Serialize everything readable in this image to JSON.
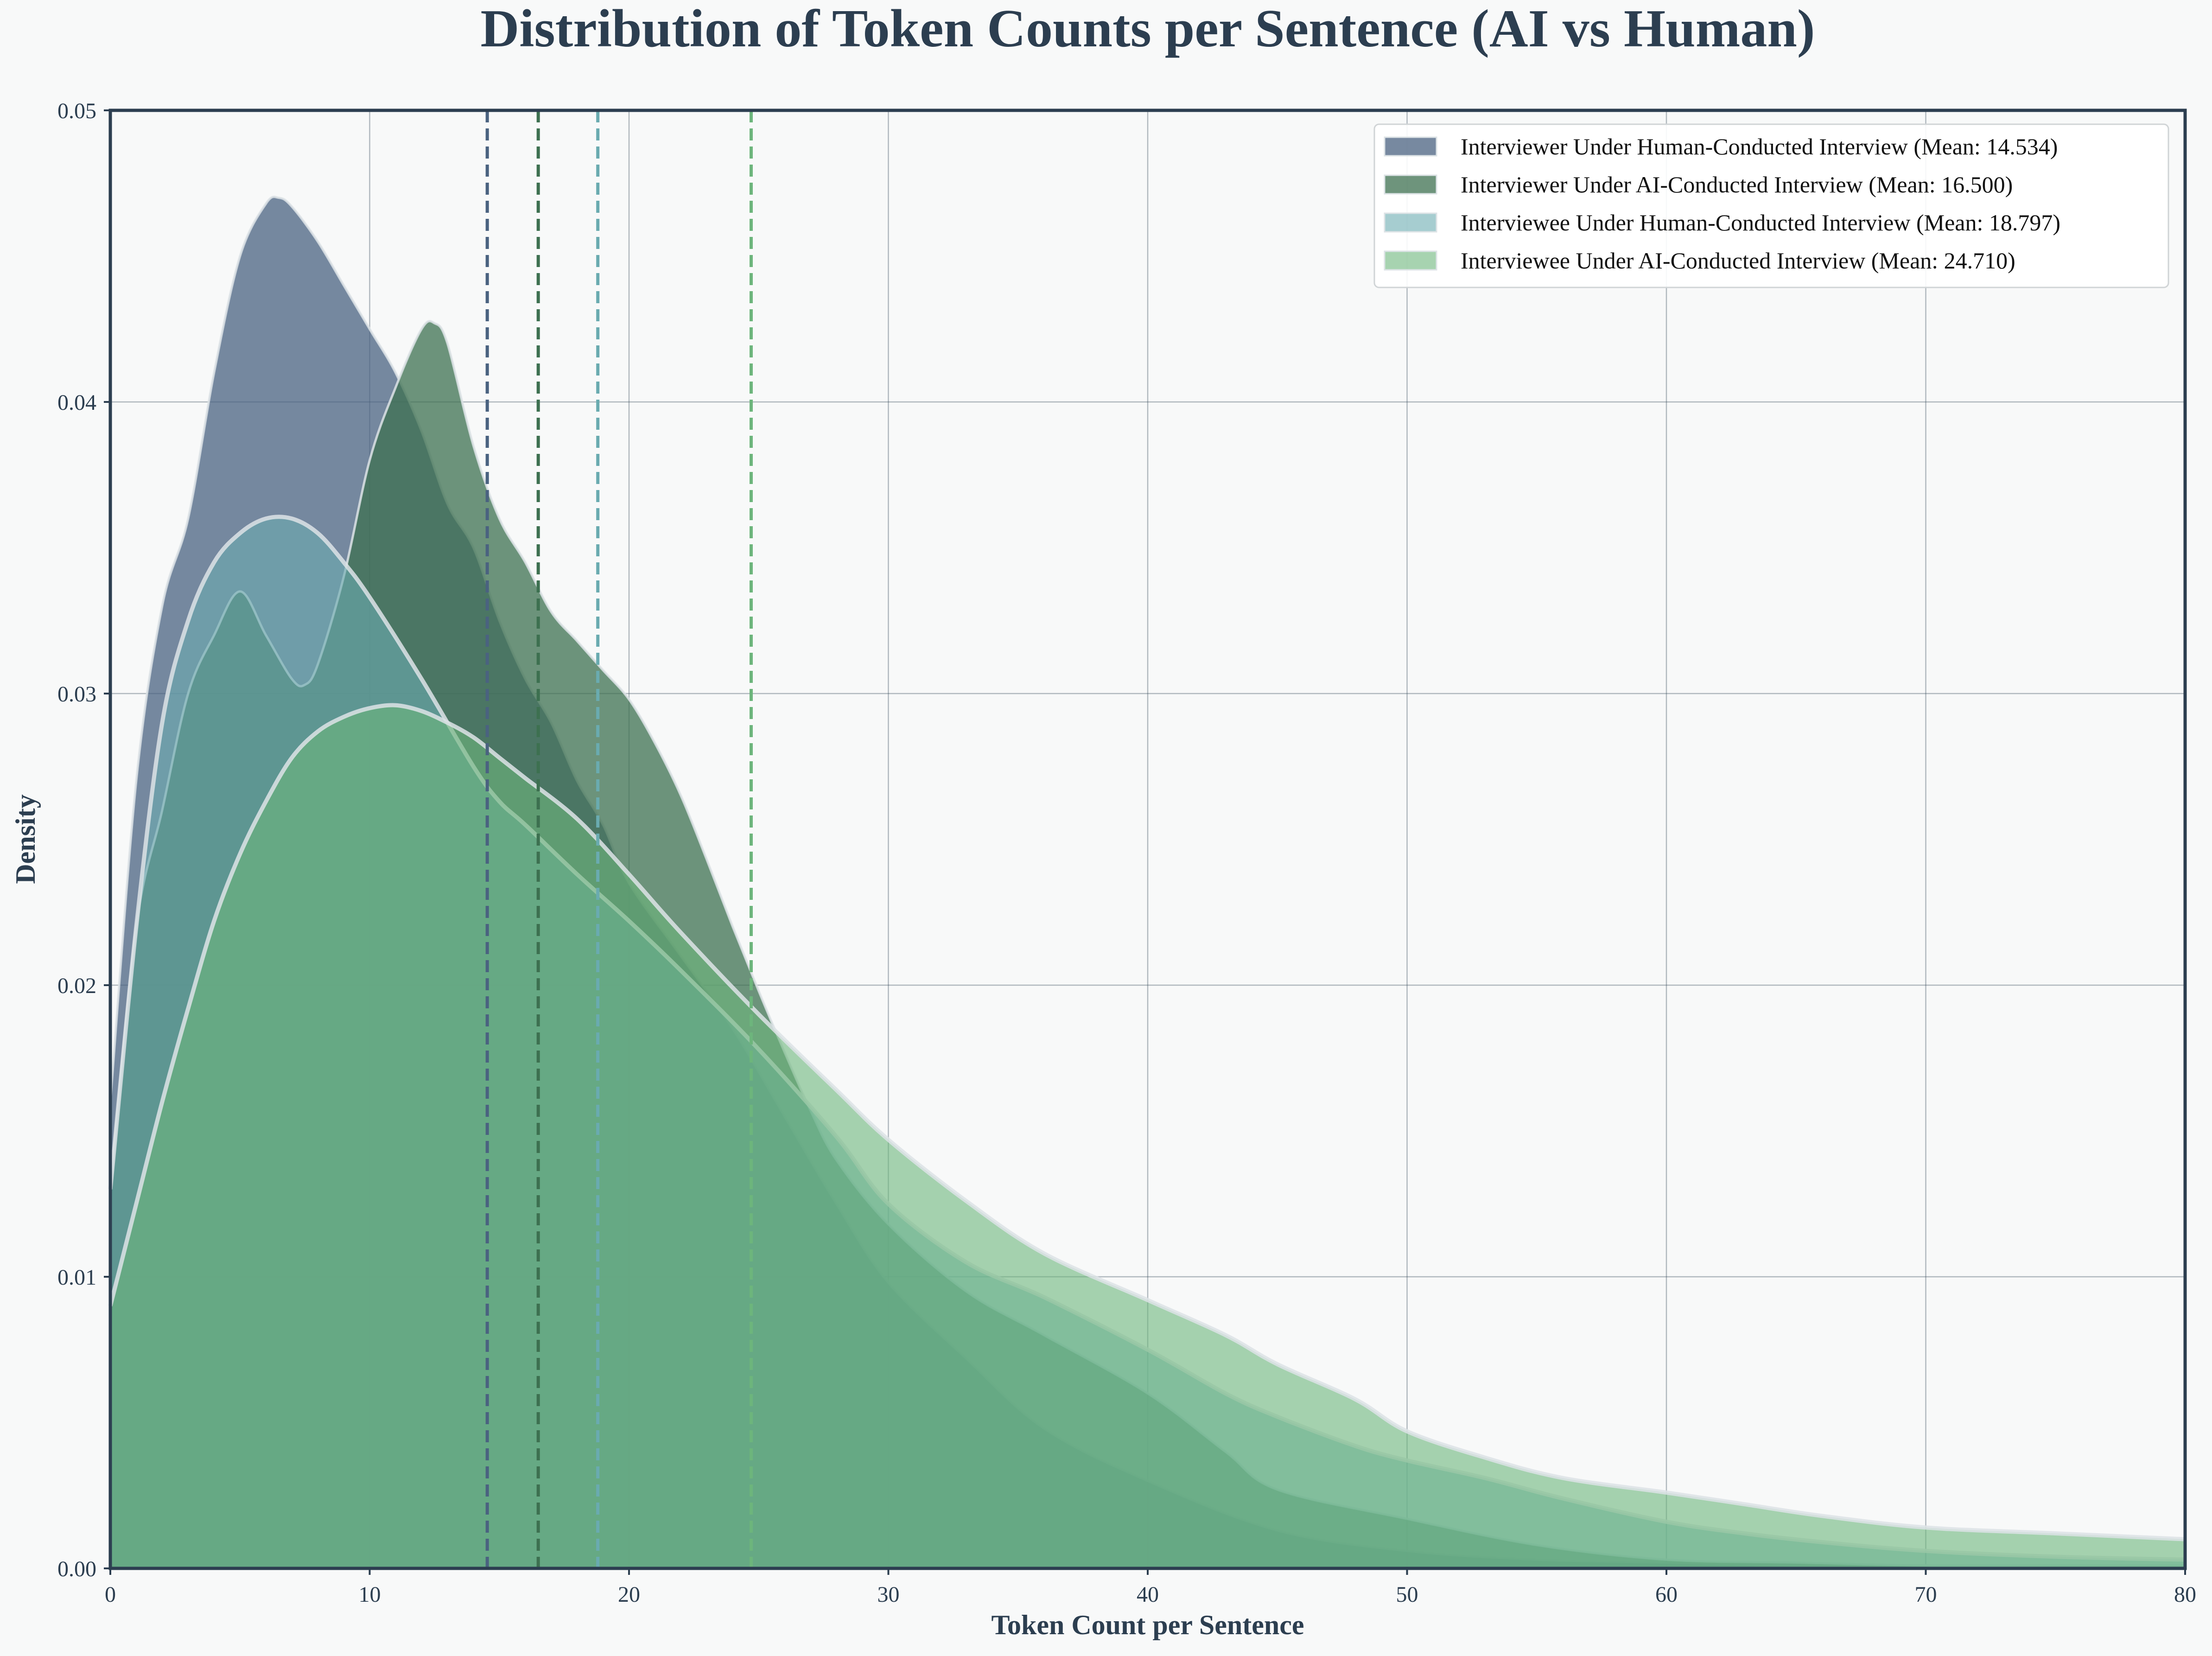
{
  "chart_data": {
    "type": "area",
    "title": "Distribution of Token Counts per Sentence (AI vs Human)",
    "xlabel": "Token Count per Sentence",
    "ylabel": "Density",
    "xlim": [
      0,
      80
    ],
    "ylim": [
      0,
      0.05
    ],
    "xticks": [
      0,
      10,
      20,
      30,
      40,
      50,
      60,
      70,
      80
    ],
    "xtick_labels": [
      "0",
      "10",
      "20",
      "30",
      "40",
      "50",
      "60",
      "70",
      "80"
    ],
    "yticks": [
      0,
      0.01,
      0.02,
      0.03,
      0.04,
      0.05
    ],
    "ytick_labels": [
      "0.00",
      "0.01",
      "0.02",
      "0.03",
      "0.04",
      "0.05"
    ],
    "grid": true,
    "legend_position": "top-right",
    "series": [
      {
        "name": "Interviewer Under Human-Conducted Interview (Mean: 14.534)",
        "color": "#4a6280",
        "mean": 14.534,
        "x": [
          0,
          1,
          2,
          3,
          4,
          5,
          6,
          6.5,
          7,
          8,
          9,
          10,
          11,
          12,
          13,
          14,
          15,
          16,
          17,
          18,
          19,
          20,
          22,
          24,
          26,
          28,
          30,
          33,
          36,
          40,
          45,
          50,
          55,
          60,
          65,
          70,
          75,
          80
        ],
        "y": [
          0.016,
          0.027,
          0.033,
          0.036,
          0.041,
          0.045,
          0.0468,
          0.047,
          0.0467,
          0.0455,
          0.044,
          0.0425,
          0.041,
          0.039,
          0.0365,
          0.035,
          0.0325,
          0.0305,
          0.029,
          0.027,
          0.0255,
          0.0235,
          0.021,
          0.0185,
          0.0155,
          0.0125,
          0.0098,
          0.0072,
          0.0048,
          0.003,
          0.0013,
          0.0006,
          0.0003,
          0.0002,
          0.0001,
          0.0001,
          0.0001,
          0.0001
        ]
      },
      {
        "name": "Interviewer Under AI-Conducted Interview (Mean: 16.500)",
        "color": "#3d7050",
        "mean": 16.5,
        "x": [
          0,
          1,
          2,
          3,
          4,
          5,
          6,
          7,
          7.5,
          8,
          9,
          10,
          11,
          12,
          12.5,
          13,
          14,
          15,
          16,
          17,
          18,
          19,
          20,
          21,
          22,
          23,
          24,
          25,
          26,
          27,
          28,
          30,
          33,
          36,
          40,
          43,
          45,
          50,
          55,
          60,
          65,
          70,
          75,
          80
        ],
        "y": [
          0.013,
          0.022,
          0.026,
          0.03,
          0.032,
          0.0335,
          0.032,
          0.0305,
          0.0303,
          0.031,
          0.034,
          0.038,
          0.0405,
          0.0425,
          0.0427,
          0.042,
          0.0385,
          0.036,
          0.0345,
          0.0328,
          0.0318,
          0.0308,
          0.0298,
          0.0283,
          0.0265,
          0.0243,
          0.022,
          0.0198,
          0.0177,
          0.0157,
          0.014,
          0.0118,
          0.0095,
          0.008,
          0.006,
          0.004,
          0.0027,
          0.0017,
          0.0008,
          0.0003,
          0.0002,
          0.0001,
          0.0001,
          0.0001
        ]
      },
      {
        "name": "Interviewee Under Human-Conducted Interview (Mean: 18.797)",
        "color": "#6aabb0",
        "mean": 18.797,
        "x": [
          0,
          1,
          2,
          3,
          4,
          5,
          6,
          7,
          8,
          9,
          10,
          12,
          14,
          15,
          16,
          18,
          20,
          22,
          25,
          28,
          30,
          33,
          36,
          40,
          43,
          45,
          48,
          50,
          53,
          56,
          60,
          63,
          66,
          70,
          75,
          80
        ],
        "y": [
          0.013,
          0.022,
          0.029,
          0.0325,
          0.0345,
          0.0355,
          0.036,
          0.036,
          0.0355,
          0.0345,
          0.0333,
          0.0305,
          0.0275,
          0.0263,
          0.0255,
          0.0238,
          0.0222,
          0.0205,
          0.0178,
          0.0148,
          0.0125,
          0.0105,
          0.0093,
          0.0075,
          0.006,
          0.0052,
          0.0042,
          0.0037,
          0.0031,
          0.0024,
          0.0016,
          0.0012,
          0.0009,
          0.0006,
          0.0004,
          0.0003
        ]
      },
      {
        "name": "Interviewee Under AI-Conducted Interview (Mean: 24.710)",
        "color": "#6db57c",
        "mean": 24.71,
        "x": [
          0,
          1,
          2,
          3,
          4,
          5,
          6,
          7,
          8,
          9,
          10,
          11,
          12,
          13,
          14,
          15,
          16,
          18,
          20,
          22,
          25,
          28,
          30,
          33,
          36,
          40,
          43,
          45,
          48,
          50,
          53,
          56,
          60,
          63,
          66,
          70,
          75,
          80
        ],
        "y": [
          0.009,
          0.0125,
          0.016,
          0.0192,
          0.0222,
          0.0245,
          0.0263,
          0.0278,
          0.0287,
          0.0292,
          0.0295,
          0.0296,
          0.0294,
          0.029,
          0.0285,
          0.0278,
          0.0271,
          0.0257,
          0.0238,
          0.0218,
          0.019,
          0.0164,
          0.0147,
          0.0126,
          0.0108,
          0.0092,
          0.008,
          0.007,
          0.0058,
          0.0047,
          0.0038,
          0.0031,
          0.0026,
          0.0022,
          0.0018,
          0.0014,
          0.0012,
          0.001
        ]
      }
    ]
  }
}
